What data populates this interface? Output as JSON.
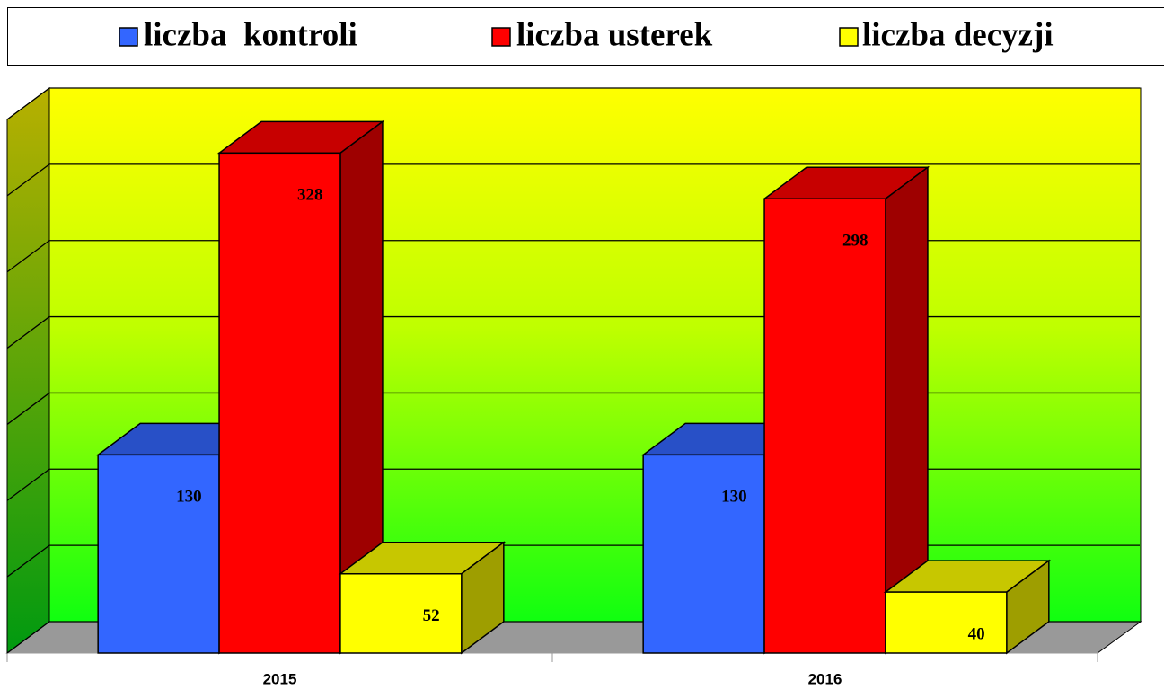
{
  "chart_data": {
    "type": "bar3d",
    "categories": [
      "2015",
      "2016"
    ],
    "series": [
      {
        "name": "liczba  kontroli",
        "color": "#3366ff",
        "values": [
          130,
          130
        ]
      },
      {
        "name": "liczba usterek",
        "color": "#ff0000",
        "values": [
          328,
          298
        ]
      },
      {
        "name": "liczba decyzji",
        "color": "#ffff00",
        "values": [
          52,
          40
        ]
      }
    ],
    "ylim": [
      0,
      350
    ],
    "yticks": [
      0,
      50,
      100,
      150,
      200,
      250,
      300,
      350
    ],
    "grid": true
  }
}
